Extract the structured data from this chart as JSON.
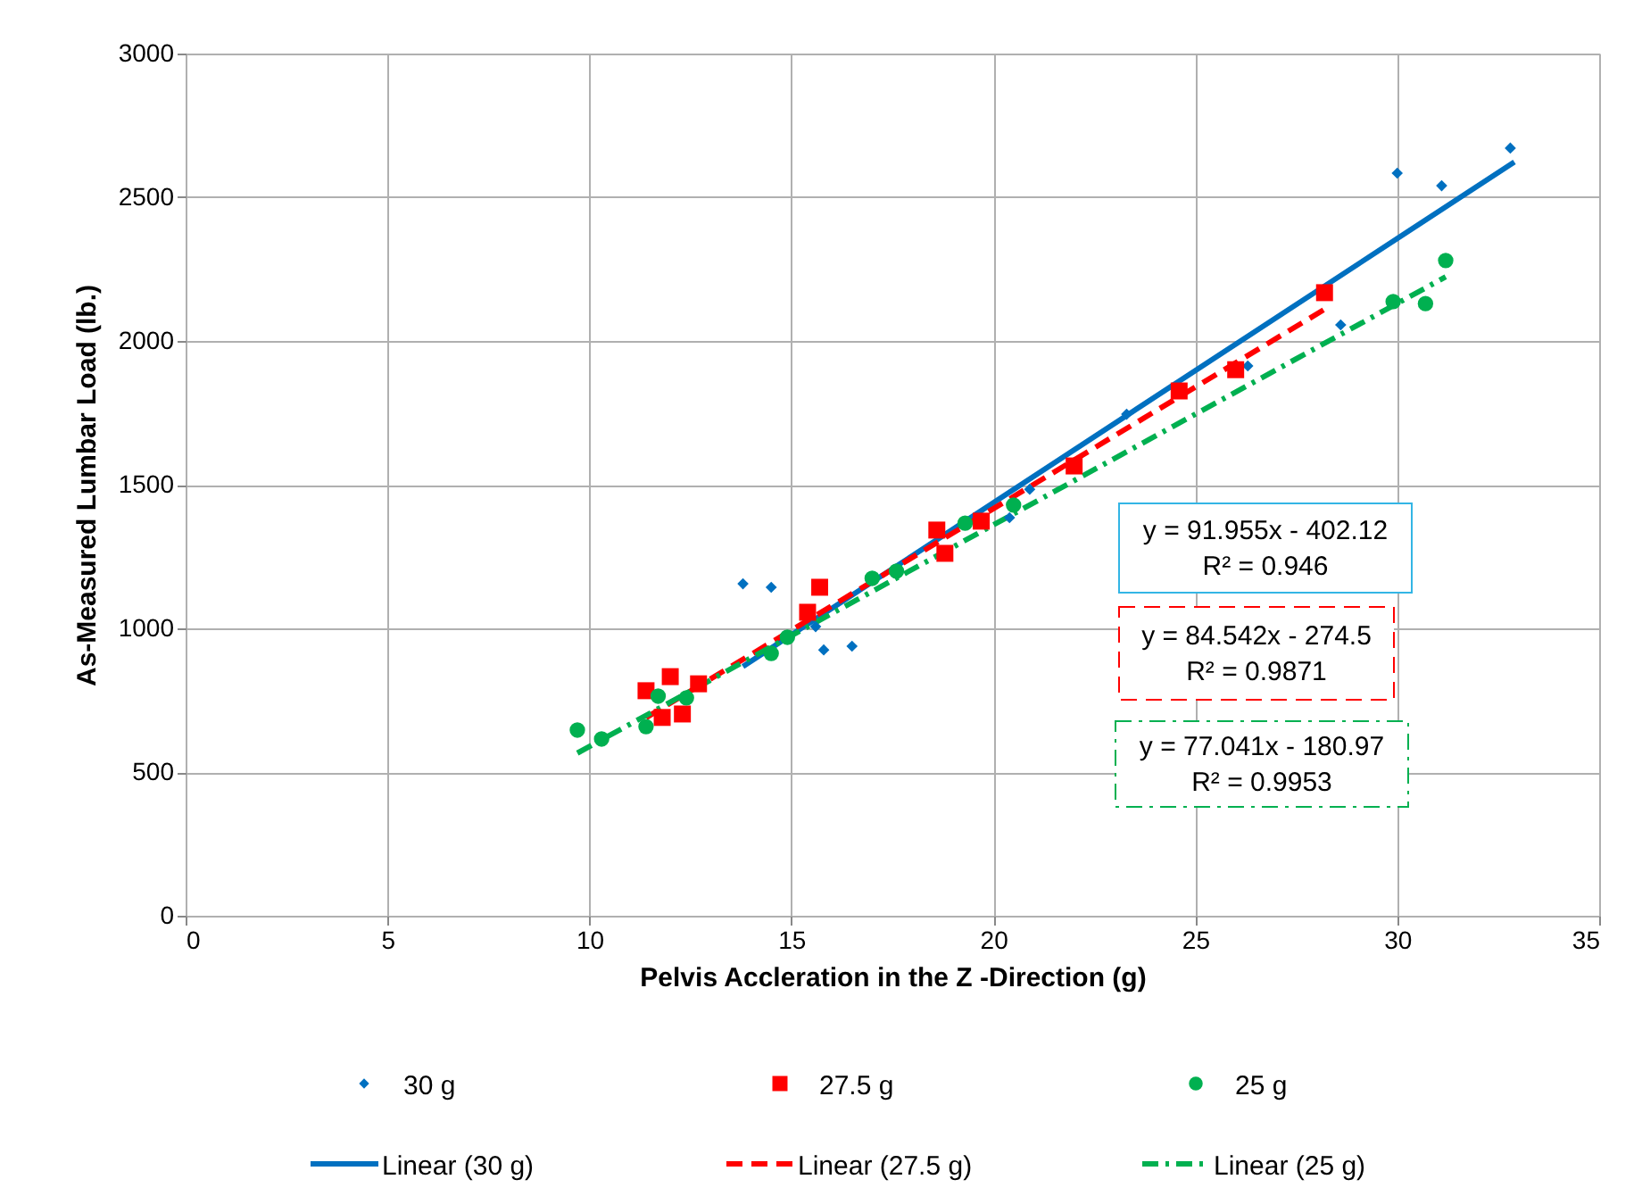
{
  "chart_data": {
    "type": "scatter",
    "xlabel": "Pelvis Accleration in the Z -Direction (g)",
    "ylabel": "As-Measured Lumbar Load (lb.)",
    "xlim": [
      0,
      35
    ],
    "xticks": [
      0,
      5,
      10,
      15,
      20,
      25,
      30,
      35
    ],
    "ylim": [
      0,
      3000
    ],
    "yticks": [
      0,
      500,
      1000,
      1500,
      2000,
      2500,
      3000
    ],
    "grid": true,
    "legend": "bottom",
    "series": [
      {
        "name": "30 g",
        "marker": "diamond",
        "color": "#0070c0",
        "x": [
          13.8,
          14.5,
          15.6,
          15.8,
          16.5,
          20.4,
          20.9,
          23.3,
          26.3,
          28.6,
          30.0,
          31.1,
          32.8
        ],
        "values": [
          1155,
          1143,
          1006,
          925,
          938,
          1385,
          1484,
          1745,
          1913,
          2056,
          2584,
          2540,
          2671
        ]
      },
      {
        "name": "27.5 g",
        "marker": "square",
        "color": "#ff0000",
        "x": [
          11.4,
          11.8,
          12.0,
          12.3,
          12.7,
          15.4,
          15.7,
          18.6,
          18.8,
          19.7,
          22.0,
          24.6,
          26.0,
          28.2
        ],
        "values": [
          783,
          690,
          832,
          702,
          807,
          1056,
          1143,
          1342,
          1261,
          1373,
          1565,
          1826,
          1900,
          2168
        ]
      },
      {
        "name": "25 g",
        "marker": "circle",
        "color": "#00b050",
        "x": [
          9.7,
          10.3,
          11.4,
          11.7,
          12.4,
          14.5,
          14.9,
          17.0,
          17.6,
          19.3,
          20.5,
          29.9,
          30.7,
          31.2
        ],
        "values": [
          646,
          615,
          658,
          764,
          758,
          913,
          969,
          1174,
          1199,
          1366,
          1429,
          2137,
          2130,
          2280
        ]
      },
      {
        "name": "Linear (30 g)",
        "type": "line",
        "marker": "none",
        "line_style": "solid",
        "color": "#0070c0",
        "x": [
          13.8,
          32.9
        ],
        "values": [
          867,
          2623
        ]
      },
      {
        "name": "Linear (27.5 g)",
        "type": "line",
        "marker": "none",
        "line_style": "dashed",
        "color": "#ff0000",
        "x": [
          11.4,
          28.2
        ],
        "values": [
          689,
          2110
        ]
      },
      {
        "name": "Linear (25 g)",
        "type": "line",
        "marker": "none",
        "line_style": "dashdot",
        "color": "#00b050",
        "x": [
          9.7,
          31.2
        ],
        "values": [
          566,
          2223
        ]
      }
    ],
    "annotations": [
      "y = 91.955x - 402.12\nR² = 0.946",
      "y = 84.542x - 274.5\nR² = 0.9871",
      "y = 77.041x - 180.97\nR² = 0.9953"
    ]
  }
}
